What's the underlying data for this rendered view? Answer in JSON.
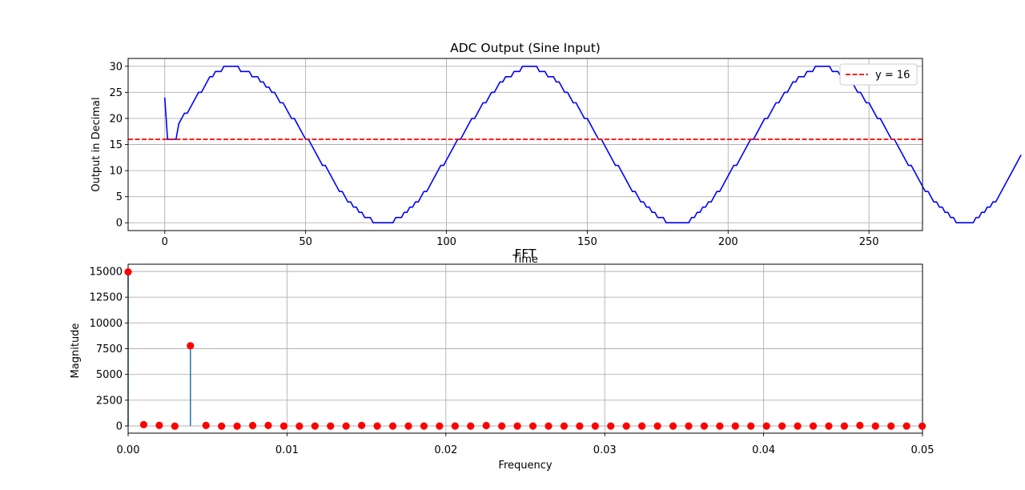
{
  "chart_data": [
    {
      "type": "line",
      "title": "ADC Output (Sine Input)",
      "xlabel": "Time",
      "ylabel": "Output in Decimal",
      "xlim": [
        -13,
        269
      ],
      "ylim": [
        -1.5,
        31.5
      ],
      "xticks": [
        0,
        50,
        100,
        150,
        200,
        250
      ],
      "yticks": [
        0,
        5,
        10,
        15,
        20,
        25,
        30
      ],
      "grid": true,
      "legend_position": "top-right",
      "series": [
        {
          "color": "#0000ff",
          "x_start": 0,
          "x_step": 1,
          "values": [
            24,
            16,
            16,
            16,
            16,
            19,
            20,
            21,
            21,
            22,
            23,
            24,
            25,
            25,
            26,
            27,
            28,
            28,
            29,
            29,
            29,
            30,
            30,
            30,
            30,
            30,
            30,
            29,
            29,
            29,
            29,
            28,
            28,
            28,
            27,
            27,
            26,
            26,
            25,
            25,
            24,
            23,
            23,
            22,
            21,
            20,
            20,
            19,
            18,
            17,
            16,
            16,
            15,
            14,
            13,
            12,
            11,
            11,
            10,
            9,
            8,
            7,
            6,
            6,
            5,
            4,
            4,
            3,
            3,
            2,
            2,
            1,
            1,
            1,
            0,
            0,
            0,
            0,
            0,
            0,
            0,
            0,
            1,
            1,
            1,
            2,
            2,
            3,
            3,
            4,
            4,
            5,
            6,
            6,
            7,
            8,
            9,
            10,
            11,
            11,
            12,
            13,
            14,
            15,
            16,
            16,
            17,
            18,
            19,
            20,
            20,
            21,
            22,
            23,
            23,
            24,
            25,
            25,
            26,
            27,
            27,
            28,
            28,
            28,
            29,
            29,
            29,
            30,
            30,
            30,
            30,
            30,
            30,
            29,
            29,
            29,
            28,
            28,
            28,
            27,
            27,
            26,
            25,
            25,
            24,
            23,
            23,
            22,
            21,
            20,
            20,
            19,
            18,
            17,
            16,
            16,
            15,
            14,
            13,
            12,
            11,
            11,
            10,
            9,
            8,
            7,
            6,
            6,
            5,
            4,
            4,
            3,
            3,
            2,
            2,
            1,
            1,
            1,
            0,
            0,
            0,
            0,
            0,
            0,
            0,
            0,
            0,
            1,
            1,
            2,
            2,
            3,
            3,
            4,
            4,
            5,
            6,
            6,
            7,
            8,
            9,
            10,
            11,
            11,
            12,
            13,
            14,
            15,
            16,
            16,
            17,
            18,
            19,
            20,
            20,
            21,
            22,
            23,
            23,
            24,
            25,
            25,
            26,
            27,
            27,
            28,
            28,
            28,
            29,
            29,
            29,
            30,
            30,
            30,
            30,
            30,
            30,
            29,
            29,
            29,
            28,
            28,
            28,
            27,
            27,
            26,
            25,
            25,
            24,
            23,
            23,
            22,
            21,
            20,
            20,
            19,
            18,
            17,
            16,
            16,
            15,
            14,
            13,
            12,
            11,
            11,
            10,
            9,
            8,
            7,
            6,
            6,
            5,
            4,
            4,
            3,
            3,
            2,
            2,
            1,
            1,
            0,
            0,
            0,
            0,
            0,
            0,
            0,
            1,
            1,
            2,
            2,
            3,
            3,
            4,
            4,
            5,
            6,
            7,
            8,
            9,
            10,
            11,
            12,
            13
          ]
        },
        {
          "name": "y = 16",
          "style": "dashed",
          "color": "#ff0000",
          "y": 16
        }
      ]
    },
    {
      "type": "stem",
      "title": "FFT",
      "xlabel": "Frequency",
      "ylabel": "Magnitude",
      "xlim": [
        0,
        0.05
      ],
      "ylim": [
        -700,
        15700
      ],
      "xticks": [
        "0.00",
        "0.01",
        "0.02",
        "0.03",
        "0.04",
        "0.05"
      ],
      "yticks": [
        0,
        2500,
        5000,
        7500,
        10000,
        12500,
        15000
      ],
      "grid": true,
      "marker_color": "#ff0000",
      "stem_color": "#1f77b4",
      "x_step": 0.00098,
      "values": [
        14950,
        130,
        60,
        -20,
        7780,
        50,
        -20,
        -20,
        40,
        50,
        -10,
        -20,
        -10,
        -10,
        -10,
        50,
        -10,
        -10,
        -10,
        -10,
        -10,
        -10,
        -10,
        40,
        -10,
        -10,
        -10,
        -10,
        -10,
        -10,
        -10,
        -10,
        -10,
        -10,
        -10,
        -10,
        -10,
        -10,
        -10,
        -10,
        -10,
        -10,
        -10,
        -10,
        -10,
        -10,
        -10,
        50,
        -10,
        -10,
        -10,
        -20
      ]
    }
  ]
}
